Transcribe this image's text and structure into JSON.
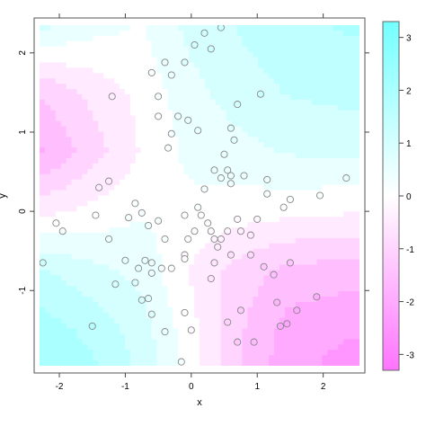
{
  "chart_data": {
    "type": "heatmap",
    "title": "",
    "xlabel": "x",
    "ylabel": "y",
    "xlim": [
      -2.3,
      2.55
    ],
    "ylim": [
      -1.95,
      2.35
    ],
    "x_ticks": [
      -2,
      -1,
      0,
      1,
      2
    ],
    "y_ticks": [
      -1,
      0,
      1,
      2
    ],
    "colorbar": {
      "ticks": [
        3,
        2,
        1,
        0,
        -1,
        -2,
        -3
      ],
      "range": [
        -3.3,
        3.3
      ],
      "low_color": "#ff73ff",
      "mid_color": "#ffffff",
      "high_color": "#73ffff"
    },
    "surface": {
      "description": "filled contour field over x and y",
      "grid_x": [
        -2.25,
        -1.5,
        -0.75,
        0,
        0.75,
        1.5,
        2.4
      ],
      "grid_y": [
        2.3,
        1.5,
        0.75,
        0,
        -0.75,
        -1.5,
        -1.9
      ],
      "z": [
        [
          0.8,
          0.4,
          0.2,
          0.9,
          1.3,
          1.6,
          1.8
        ],
        [
          -1.2,
          -0.6,
          -0.1,
          0.6,
          1.0,
          1.3,
          1.4
        ],
        [
          -1.8,
          -1.0,
          -0.2,
          0.4,
          0.6,
          0.8,
          0.9
        ],
        [
          -0.4,
          -0.1,
          0.2,
          0.1,
          0.0,
          -0.1,
          -0.2
        ],
        [
          1.3,
          0.9,
          0.6,
          -0.3,
          -1.0,
          -1.4,
          -1.5
        ],
        [
          2.0,
          1.6,
          1.0,
          -0.1,
          -1.2,
          -2.0,
          -2.2
        ],
        [
          2.2,
          1.8,
          1.1,
          0.0,
          -1.2,
          -2.1,
          -2.4
        ]
      ]
    },
    "points": [
      {
        "x": -0.4,
        "y": 1.88
      },
      {
        "x": -0.1,
        "y": 1.88
      },
      {
        "x": 0.2,
        "y": 2.25
      },
      {
        "x": 0.3,
        "y": 2.05
      },
      {
        "x": 0.05,
        "y": 2.1
      },
      {
        "x": 0.45,
        "y": 2.32
      },
      {
        "x": -1.2,
        "y": 1.45
      },
      {
        "x": -0.6,
        "y": 1.75
      },
      {
        "x": -0.5,
        "y": 1.45
      },
      {
        "x": -0.3,
        "y": 1.72
      },
      {
        "x": -0.5,
        "y": 1.2
      },
      {
        "x": -0.2,
        "y": 1.2
      },
      {
        "x": -0.3,
        "y": 0.98
      },
      {
        "x": -0.35,
        "y": 0.8
      },
      {
        "x": 0.1,
        "y": 1.02
      },
      {
        "x": -0.05,
        "y": 1.15
      },
      {
        "x": 0.7,
        "y": 1.35
      },
      {
        "x": 1.05,
        "y": 1.48
      },
      {
        "x": 0.6,
        "y": 1.05
      },
      {
        "x": 0.65,
        "y": 0.9
      },
      {
        "x": 0.5,
        "y": 0.72
      },
      {
        "x": 0.35,
        "y": 0.52
      },
      {
        "x": 0.55,
        "y": 0.52
      },
      {
        "x": 0.45,
        "y": 0.42
      },
      {
        "x": 0.6,
        "y": 0.45
      },
      {
        "x": 0.6,
        "y": 0.35
      },
      {
        "x": 0.2,
        "y": 0.28
      },
      {
        "x": 0.8,
        "y": 0.45
      },
      {
        "x": 1.15,
        "y": 0.4
      },
      {
        "x": 1.15,
        "y": 0.22
      },
      {
        "x": 1.5,
        "y": 0.15
      },
      {
        "x": 1.95,
        "y": 0.2
      },
      {
        "x": 2.35,
        "y": 0.42
      },
      {
        "x": -1.4,
        "y": 0.3
      },
      {
        "x": -1.25,
        "y": 0.38
      },
      {
        "x": -1.45,
        "y": -0.05
      },
      {
        "x": -0.85,
        "y": 0.1
      },
      {
        "x": -0.75,
        "y": -0.02
      },
      {
        "x": -0.95,
        "y": -0.08
      },
      {
        "x": -0.65,
        "y": -0.18
      },
      {
        "x": -0.5,
        "y": -0.12
      },
      {
        "x": -0.4,
        "y": -0.35
      },
      {
        "x": -0.1,
        "y": -0.05
      },
      {
        "x": 0.1,
        "y": 0.05
      },
      {
        "x": 0.15,
        "y": -0.05
      },
      {
        "x": 0.05,
        "y": -0.25
      },
      {
        "x": -0.05,
        "y": -0.35
      },
      {
        "x": -0.1,
        "y": -0.55
      },
      {
        "x": 0.25,
        "y": -0.15
      },
      {
        "x": 0.3,
        "y": -0.25
      },
      {
        "x": 0.35,
        "y": -0.35
      },
      {
        "x": 0.45,
        "y": -0.35
      },
      {
        "x": 0.55,
        "y": -0.25
      },
      {
        "x": 0.7,
        "y": -0.1
      },
      {
        "x": 0.75,
        "y": -0.25
      },
      {
        "x": 0.9,
        "y": -0.3
      },
      {
        "x": 0.9,
        "y": -0.55
      },
      {
        "x": 1.0,
        "y": -0.1
      },
      {
        "x": 1.4,
        "y": 0.05
      },
      {
        "x": 0.4,
        "y": -0.45
      },
      {
        "x": 0.35,
        "y": -0.65
      },
      {
        "x": 0.3,
        "y": -0.85
      },
      {
        "x": 0.6,
        "y": -0.55
      },
      {
        "x": 1.1,
        "y": -0.7
      },
      {
        "x": 1.5,
        "y": -0.65
      },
      {
        "x": 1.25,
        "y": -0.8
      },
      {
        "x": -2.05,
        "y": -0.15
      },
      {
        "x": -1.95,
        "y": -0.25
      },
      {
        "x": -2.25,
        "y": -0.65
      },
      {
        "x": -1.25,
        "y": -0.35
      },
      {
        "x": -1.0,
        "y": -0.62
      },
      {
        "x": -0.7,
        "y": -0.62
      },
      {
        "x": -0.8,
        "y": -0.72
      },
      {
        "x": -0.6,
        "y": -0.65
      },
      {
        "x": -0.6,
        "y": -0.78
      },
      {
        "x": -0.45,
        "y": -0.72
      },
      {
        "x": -0.3,
        "y": -0.72
      },
      {
        "x": -0.1,
        "y": -0.6
      },
      {
        "x": -1.15,
        "y": -0.92
      },
      {
        "x": -0.85,
        "y": -0.9
      },
      {
        "x": -0.75,
        "y": -1.12
      },
      {
        "x": -0.6,
        "y": -1.3
      },
      {
        "x": -0.65,
        "y": -1.1
      },
      {
        "x": -0.1,
        "y": -1.28
      },
      {
        "x": 0.0,
        "y": -1.5
      },
      {
        "x": 0.55,
        "y": -1.4
      },
      {
        "x": 0.7,
        "y": -1.65
      },
      {
        "x": 0.95,
        "y": -1.65
      },
      {
        "x": 1.3,
        "y": -1.15
      },
      {
        "x": 1.6,
        "y": -1.25
      },
      {
        "x": 1.9,
        "y": -1.08
      },
      {
        "x": 1.45,
        "y": -1.42
      },
      {
        "x": 1.35,
        "y": -1.45
      },
      {
        "x": -1.5,
        "y": -1.45
      },
      {
        "x": -0.4,
        "y": -1.52
      },
      {
        "x": 0.75,
        "y": -1.25
      },
      {
        "x": -0.15,
        "y": -1.9
      }
    ],
    "grid": false
  }
}
